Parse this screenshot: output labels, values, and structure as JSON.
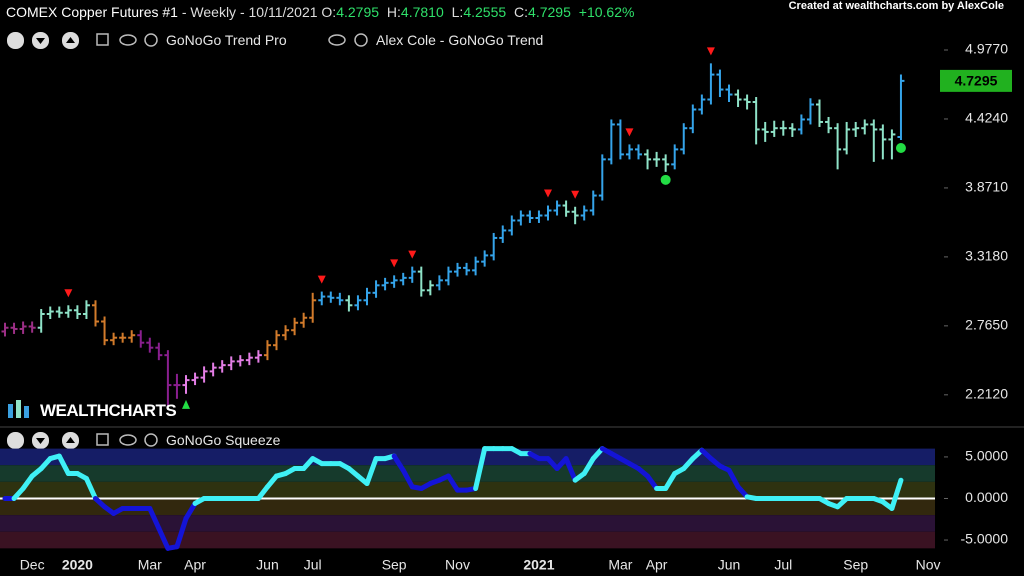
{
  "header": {
    "symbol": "COMEX Copper Futures #1",
    "details": "- Weekly - 10/11/2021",
    "quote": [
      {
        "label": "O:",
        "value": "4.2795"
      },
      {
        "label": "H:",
        "value": "4.7810"
      },
      {
        "label": "L:",
        "value": "4.2555"
      },
      {
        "label": "C:",
        "value": "4.7295"
      }
    ],
    "change": "+10.62%",
    "credit": "Created at wealthcharts.com by AlexCole",
    "indicators": [
      "GoNoGo Trend Pro",
      "Alex Cole - GoNoGo Trend"
    ],
    "squeeze_indicator": "GoNoGo Squeeze",
    "logo": "WEALTHCHARTS"
  },
  "chart_data": [
    {
      "type": "ohlc",
      "ylim": [
        1.97,
        5.378
      ],
      "grid": false,
      "yticks": [
        {
          "value": 2.212,
          "label": "2.2120"
        },
        {
          "value": 2.765,
          "label": "2.7650"
        },
        {
          "value": 3.318,
          "label": "3.3180"
        },
        {
          "value": 3.871,
          "label": "3.8710"
        },
        {
          "value": 4.424,
          "label": "4.4240"
        },
        {
          "value": 4.977,
          "label": "4.9770"
        }
      ],
      "ohlc": [
        [
          2.72,
          2.79,
          2.68,
          2.75
        ],
        [
          2.75,
          2.79,
          2.7,
          2.74
        ],
        [
          2.74,
          2.8,
          2.7,
          2.76
        ],
        [
          2.76,
          2.8,
          2.71,
          2.75
        ],
        [
          2.75,
          2.9,
          2.71,
          2.86
        ],
        [
          2.86,
          2.92,
          2.82,
          2.88
        ],
        [
          2.88,
          2.92,
          2.83,
          2.87
        ],
        [
          2.87,
          2.93,
          2.83,
          2.89
        ],
        [
          2.89,
          2.93,
          2.82,
          2.86
        ],
        [
          2.86,
          2.97,
          2.82,
          2.93
        ],
        [
          2.93,
          2.97,
          2.76,
          2.8
        ],
        [
          2.8,
          2.84,
          2.61,
          2.65
        ],
        [
          2.65,
          2.71,
          2.61,
          2.67
        ],
        [
          2.67,
          2.71,
          2.63,
          2.67
        ],
        [
          2.67,
          2.73,
          2.63,
          2.69
        ],
        [
          2.69,
          2.73,
          2.59,
          2.63
        ],
        [
          2.63,
          2.67,
          2.55,
          2.59
        ],
        [
          2.59,
          2.63,
          2.49,
          2.53
        ],
        [
          2.53,
          2.57,
          2.12,
          2.29
        ],
        [
          2.29,
          2.38,
          2.18,
          2.29
        ],
        [
          2.29,
          2.37,
          2.22,
          2.33
        ],
        [
          2.33,
          2.39,
          2.29,
          2.35
        ],
        [
          2.35,
          2.44,
          2.31,
          2.4
        ],
        [
          2.4,
          2.47,
          2.36,
          2.43
        ],
        [
          2.43,
          2.49,
          2.39,
          2.45
        ],
        [
          2.45,
          2.52,
          2.41,
          2.48
        ],
        [
          2.48,
          2.53,
          2.44,
          2.49
        ],
        [
          2.49,
          2.55,
          2.45,
          2.51
        ],
        [
          2.51,
          2.57,
          2.47,
          2.53
        ],
        [
          2.53,
          2.65,
          2.49,
          2.61
        ],
        [
          2.61,
          2.73,
          2.57,
          2.69
        ],
        [
          2.69,
          2.77,
          2.65,
          2.73
        ],
        [
          2.73,
          2.83,
          2.69,
          2.79
        ],
        [
          2.79,
          2.87,
          2.75,
          2.83
        ],
        [
          2.83,
          3.03,
          2.79,
          2.97
        ],
        [
          2.97,
          3.04,
          2.93,
          3.0
        ],
        [
          3.0,
          3.04,
          2.95,
          2.99
        ],
        [
          2.99,
          3.03,
          2.93,
          2.97
        ],
        [
          2.97,
          3.01,
          2.88,
          2.93
        ],
        [
          2.93,
          3.01,
          2.89,
          2.97
        ],
        [
          2.97,
          3.07,
          2.93,
          3.03
        ],
        [
          3.03,
          3.13,
          2.99,
          3.09
        ],
        [
          3.09,
          3.15,
          3.05,
          3.11
        ],
        [
          3.11,
          3.17,
          3.07,
          3.13
        ],
        [
          3.13,
          3.19,
          3.09,
          3.15
        ],
        [
          3.15,
          3.24,
          3.11,
          3.2
        ],
        [
          3.2,
          3.24,
          3.0,
          3.05
        ],
        [
          3.05,
          3.13,
          3.01,
          3.09
        ],
        [
          3.09,
          3.17,
          3.05,
          3.13
        ],
        [
          3.13,
          3.24,
          3.09,
          3.2
        ],
        [
          3.2,
          3.27,
          3.16,
          3.23
        ],
        [
          3.23,
          3.27,
          3.17,
          3.21
        ],
        [
          3.21,
          3.32,
          3.17,
          3.28
        ],
        [
          3.28,
          3.37,
          3.24,
          3.33
        ],
        [
          3.33,
          3.51,
          3.29,
          3.47
        ],
        [
          3.47,
          3.57,
          3.43,
          3.53
        ],
        [
          3.53,
          3.65,
          3.49,
          3.61
        ],
        [
          3.61,
          3.69,
          3.57,
          3.65
        ],
        [
          3.65,
          3.69,
          3.59,
          3.63
        ],
        [
          3.63,
          3.69,
          3.59,
          3.65
        ],
        [
          3.65,
          3.73,
          3.61,
          3.69
        ],
        [
          3.69,
          3.77,
          3.65,
          3.73
        ],
        [
          3.73,
          3.77,
          3.64,
          3.68
        ],
        [
          3.68,
          3.72,
          3.58,
          3.65
        ],
        [
          3.65,
          3.73,
          3.61,
          3.69
        ],
        [
          3.69,
          3.85,
          3.65,
          3.81
        ],
        [
          3.81,
          4.14,
          3.77,
          4.1
        ],
        [
          4.1,
          4.42,
          4.06,
          4.38
        ],
        [
          4.38,
          4.42,
          4.1,
          4.14
        ],
        [
          4.14,
          4.22,
          4.1,
          4.18
        ],
        [
          4.18,
          4.22,
          4.1,
          4.14
        ],
        [
          4.14,
          4.18,
          4.02,
          4.1
        ],
        [
          4.1,
          4.16,
          4.04,
          4.1
        ],
        [
          4.1,
          4.14,
          4.0,
          4.06
        ],
        [
          4.06,
          4.22,
          4.02,
          4.18
        ],
        [
          4.18,
          4.39,
          4.14,
          4.35
        ],
        [
          4.35,
          4.54,
          4.31,
          4.5
        ],
        [
          4.5,
          4.62,
          4.46,
          4.58
        ],
        [
          4.58,
          4.87,
          4.54,
          4.78
        ],
        [
          4.78,
          4.82,
          4.6,
          4.66
        ],
        [
          4.66,
          4.7,
          4.56,
          4.62
        ],
        [
          4.62,
          4.66,
          4.52,
          4.58
        ],
        [
          4.58,
          4.62,
          4.5,
          4.56
        ],
        [
          4.56,
          4.6,
          4.22,
          4.34
        ],
        [
          4.34,
          4.4,
          4.24,
          4.32
        ],
        [
          4.32,
          4.41,
          4.28,
          4.35
        ],
        [
          4.35,
          4.41,
          4.29,
          4.35
        ],
        [
          4.35,
          4.39,
          4.28,
          4.34
        ],
        [
          4.34,
          4.46,
          4.3,
          4.42
        ],
        [
          4.42,
          4.59,
          4.38,
          4.54
        ],
        [
          4.54,
          4.58,
          4.36,
          4.4
        ],
        [
          4.4,
          4.44,
          4.31,
          4.35
        ],
        [
          4.35,
          4.39,
          4.02,
          4.18
        ],
        [
          4.18,
          4.4,
          4.14,
          4.34
        ],
        [
          4.34,
          4.4,
          4.28,
          4.35
        ],
        [
          4.35,
          4.42,
          4.3,
          4.38
        ],
        [
          4.38,
          4.42,
          4.08,
          4.34
        ],
        [
          4.34,
          4.38,
          4.1,
          4.26
        ],
        [
          4.26,
          4.34,
          4.1,
          4.3
        ],
        [
          4.2795,
          4.781,
          4.2555,
          4.7295
        ],
        null,
        null,
        null
      ],
      "colors": [
        "#9c2f86",
        "#9c2f86",
        "#9c2f86",
        "#9c2f86",
        "#8fe3c8",
        "#8fe3c8",
        "#8fe3c8",
        "#8fe3c8",
        "#8fe3c8",
        "#8fe3c8",
        "#d27b2b",
        "#d27b2b",
        "#d27b2b",
        "#d27b2b",
        "#d27b2b",
        "#8a1f8f",
        "#8a1f8f",
        "#8a1f8f",
        "#8a1f8f",
        "#8a1f8f",
        "#e47ee6",
        "#e47ee6",
        "#e47ee6",
        "#e47ee6",
        "#e47ee6",
        "#e47ee6",
        "#e47ee6",
        "#e47ee6",
        "#e47ee6",
        "#d27b2b",
        "#d27b2b",
        "#d27b2b",
        "#d27b2b",
        "#d27b2b",
        "#d27b2b",
        "#35a4ea",
        "#35a4ea",
        "#35a4ea",
        "#8fe3c8",
        "#35a4ea",
        "#35a4ea",
        "#35a4ea",
        "#35a4ea",
        "#35a4ea",
        "#35a4ea",
        "#35a4ea",
        "#8fe3c8",
        "#8fe3c8",
        "#35a4ea",
        "#35a4ea",
        "#35a4ea",
        "#35a4ea",
        "#35a4ea",
        "#35a4ea",
        "#35a4ea",
        "#35a4ea",
        "#35a4ea",
        "#35a4ea",
        "#35a4ea",
        "#35a4ea",
        "#35a4ea",
        "#35a4ea",
        "#8fe3c8",
        "#8fe3c8",
        "#35a4ea",
        "#35a4ea",
        "#35a4ea",
        "#35a4ea",
        "#35a4ea",
        "#35a4ea",
        "#35a4ea",
        "#8fe3c8",
        "#8fe3c8",
        "#8fe3c8",
        "#35a4ea",
        "#35a4ea",
        "#35a4ea",
        "#35a4ea",
        "#35a4ea",
        "#35a4ea",
        "#35a4ea",
        "#8fe3c8",
        "#8fe3c8",
        "#8fe3c8",
        "#8fe3c8",
        "#8fe3c8",
        "#8fe3c8",
        "#8fe3c8",
        "#35a4ea",
        "#35a4ea",
        "#8fe3c8",
        "#8fe3c8",
        "#8fe3c8",
        "#8fe3c8",
        "#8fe3c8",
        "#8fe3c8",
        "#8fe3c8",
        "#8fe3c8",
        "#8fe3c8",
        "#35a4ea",
        null,
        null,
        null
      ],
      "signals": [
        null,
        null,
        null,
        null,
        null,
        null,
        null,
        "down",
        null,
        null,
        null,
        null,
        null,
        null,
        null,
        null,
        null,
        null,
        null,
        null,
        "up",
        null,
        null,
        null,
        null,
        null,
        null,
        null,
        null,
        null,
        null,
        null,
        null,
        null,
        null,
        "down",
        null,
        null,
        null,
        null,
        null,
        null,
        null,
        "down",
        null,
        "down",
        null,
        null,
        null,
        null,
        null,
        null,
        null,
        null,
        null,
        null,
        null,
        null,
        null,
        null,
        "down",
        null,
        null,
        "down",
        null,
        null,
        null,
        null,
        null,
        "down",
        null,
        null,
        null,
        "dot",
        null,
        null,
        null,
        null,
        "down",
        null,
        null,
        null,
        null,
        null,
        null,
        null,
        null,
        null,
        null,
        null,
        null,
        null,
        null,
        null,
        null,
        null,
        null,
        null,
        null,
        "dot",
        null,
        null,
        null
      ]
    },
    {
      "type": "line",
      "ylim": [
        -6.8,
        8.6
      ],
      "grid": false,
      "baseline": 0,
      "yticks": [
        {
          "value": 5,
          "label": "5.0000"
        },
        {
          "value": 0,
          "label": "0.0000"
        },
        {
          "value": -5,
          "label": "-5.0000"
        }
      ],
      "bands": [
        {
          "from": 6,
          "to": 4,
          "color": "#151d66"
        },
        {
          "from": 4,
          "to": 2,
          "color": "#163a2c"
        },
        {
          "from": 2,
          "to": 0,
          "color": "#2e3210"
        },
        {
          "from": 0,
          "to": -2,
          "color": "#32280e"
        },
        {
          "from": -2,
          "to": -4,
          "color": "#2a1236"
        },
        {
          "from": -4,
          "to": -6,
          "color": "#3a1222"
        }
      ],
      "categories": [
        null,
        null,
        null,
        "Dec",
        null,
        null,
        null,
        null,
        "2020",
        null,
        null,
        null,
        null,
        null,
        null,
        null,
        "Mar",
        null,
        null,
        null,
        null,
        "Apr",
        null,
        null,
        null,
        null,
        null,
        null,
        null,
        "Jun",
        null,
        null,
        null,
        null,
        "Jul",
        null,
        null,
        null,
        null,
        null,
        null,
        null,
        null,
        "Sep",
        null,
        null,
        null,
        null,
        null,
        null,
        "Nov",
        null,
        null,
        null,
        null,
        null,
        null,
        null,
        null,
        "2021",
        null,
        null,
        null,
        null,
        null,
        null,
        null,
        null,
        "Mar",
        null,
        null,
        null,
        "Apr",
        null,
        null,
        null,
        null,
        null,
        null,
        null,
        "Jun",
        null,
        null,
        null,
        null,
        null,
        "Jul",
        null,
        null,
        null,
        null,
        null,
        null,
        null,
        "Sep",
        null,
        null,
        null,
        null,
        null,
        null,
        null,
        "Nov"
      ],
      "values": [
        0,
        0,
        1.2,
        2.7,
        3.6,
        4.8,
        5.1,
        3.0,
        3.0,
        2.4,
        0,
        -1,
        -1.8,
        -1.2,
        -1.2,
        -1.2,
        -1.2,
        -3.6,
        -6,
        -5.8,
        -2.4,
        -0.6,
        0,
        0,
        0,
        0,
        0,
        0,
        0,
        1.4,
        2.7,
        3,
        3.6,
        3.6,
        4.8,
        4.2,
        4.2,
        4.2,
        3.6,
        2.7,
        1.8,
        4.8,
        4.8,
        5.1,
        3.4,
        1.4,
        1.2,
        1.8,
        2.2,
        2.7,
        1,
        1,
        1.2,
        6,
        6,
        6,
        6,
        5.4,
        5.4,
        4.8,
        4.8,
        3.6,
        4.8,
        2.2,
        3,
        4.8,
        6,
        5.4,
        4.8,
        4.2,
        3.6,
        2.7,
        1.2,
        1.2,
        3,
        3.6,
        4.8,
        5.8,
        4.8,
        3.9,
        3.4,
        1.4,
        0.2,
        0,
        0,
        0,
        0,
        0,
        0,
        0,
        0,
        -0.6,
        -1,
        0,
        0,
        0,
        0,
        -0.4,
        -1.2,
        2.2,
        null,
        null,
        null
      ],
      "point_colors": [
        "#1414d6",
        "#1414d6",
        "#3ff0f5",
        "#3ff0f5",
        "#3ff0f5",
        "#3ff0f5",
        "#3ff0f5",
        "#3ff0f5",
        "#3ff0f5",
        "#3ff0f5",
        "#3ff0f5",
        "#1414d6",
        "#1414d6",
        "#1414d6",
        "#1414d6",
        "#1414d6",
        "#1414d6",
        "#1414d6",
        "#1414d6",
        "#1414d6",
        "#1414d6",
        "#1414d6",
        "#3ff0f5",
        "#3ff0f5",
        "#3ff0f5",
        "#3ff0f5",
        "#3ff0f5",
        "#3ff0f5",
        "#3ff0f5",
        "#3ff0f5",
        "#3ff0f5",
        "#3ff0f5",
        "#3ff0f5",
        "#3ff0f5",
        "#3ff0f5",
        "#3ff0f5",
        "#3ff0f5",
        "#3ff0f5",
        "#3ff0f5",
        "#3ff0f5",
        "#3ff0f5",
        "#3ff0f5",
        "#3ff0f5",
        "#3ff0f5",
        "#1414d6",
        "#1414d6",
        "#1414d6",
        "#1414d6",
        "#1414d6",
        "#1414d6",
        "#1414d6",
        "#1414d6",
        "#1414d6",
        "#3ff0f5",
        "#3ff0f5",
        "#3ff0f5",
        "#3ff0f5",
        "#3ff0f5",
        "#3ff0f5",
        "#1414d6",
        "#1414d6",
        "#1414d6",
        "#1414d6",
        "#1414d6",
        "#3ff0f5",
        "#3ff0f5",
        "#3ff0f5",
        "#1414d6",
        "#1414d6",
        "#1414d6",
        "#1414d6",
        "#1414d6",
        "#1414d6",
        "#3ff0f5",
        "#3ff0f5",
        "#3ff0f5",
        "#3ff0f5",
        "#3ff0f5",
        "#1414d6",
        "#1414d6",
        "#1414d6",
        "#1414d6",
        "#1414d6",
        "#3ff0f5",
        "#3ff0f5",
        "#3ff0f5",
        "#3ff0f5",
        "#3ff0f5",
        "#3ff0f5",
        "#3ff0f5",
        "#3ff0f5",
        "#3ff0f5",
        "#3ff0f5",
        "#3ff0f5",
        "#3ff0f5",
        "#3ff0f5",
        "#3ff0f5",
        "#3ff0f5",
        "#3ff0f5",
        "#3ff0f5",
        null,
        null,
        null
      ]
    }
  ]
}
